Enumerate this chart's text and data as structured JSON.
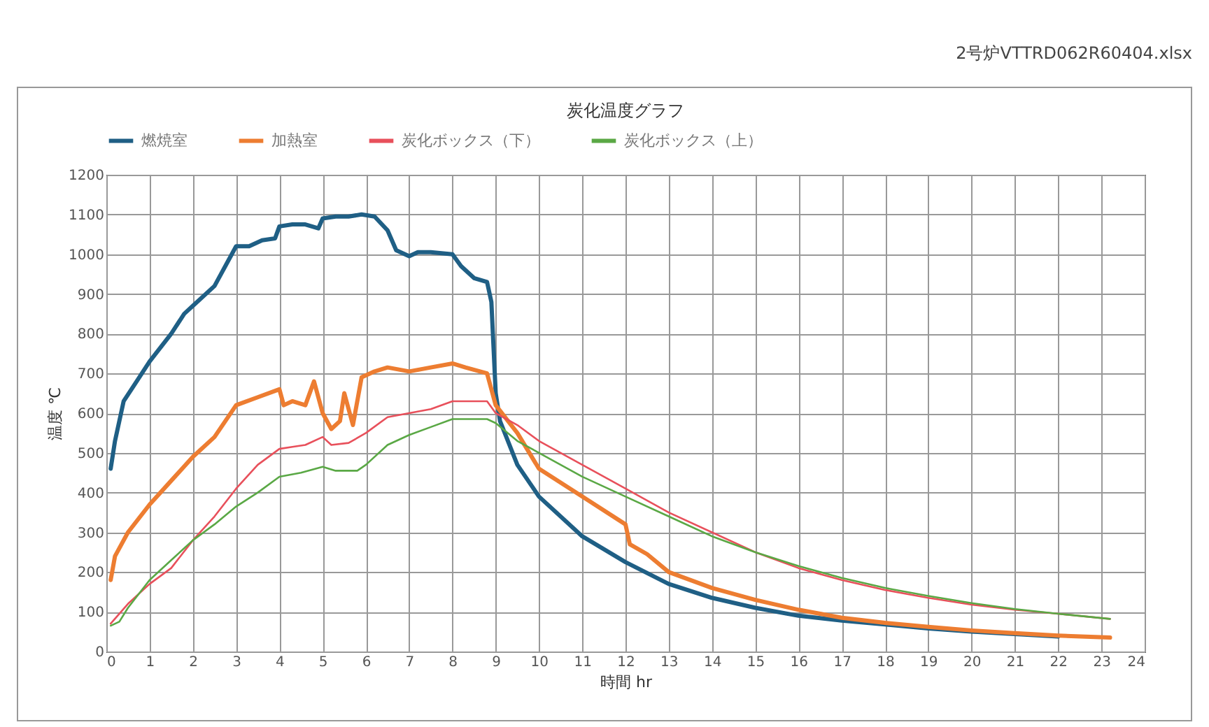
{
  "chart_data": {
    "type": "line",
    "title": "炭化温度グラフ",
    "xlabel": "時間 hr",
    "ylabel": "温度 ℃",
    "annotations": [
      "2号炉VTTRD062R60404.xlsx"
    ],
    "xlim": [
      0,
      24
    ],
    "xticks": [
      0,
      1,
      2,
      3,
      4,
      5,
      6,
      7,
      8,
      9,
      10,
      11,
      12,
      13,
      14,
      15,
      16,
      17,
      18,
      19,
      20,
      21,
      22,
      23,
      24
    ],
    "ylim": [
      0,
      1200
    ],
    "yticks": [
      0,
      100,
      200,
      300,
      400,
      500,
      600,
      700,
      800,
      900,
      1000,
      1100,
      1200
    ],
    "grid": true,
    "legend": "top",
    "series": [
      {
        "name": "燃焼室",
        "color": "#1f5f85",
        "x": [
          0.1,
          0.2,
          0.4,
          0.7,
          1,
          1.5,
          1.8,
          2,
          2.5,
          2.8,
          3,
          3.3,
          3.6,
          3.9,
          4,
          4.3,
          4.6,
          4.9,
          5,
          5.3,
          5.6,
          5.9,
          6.2,
          6.5,
          6.7,
          7,
          7.2,
          7.5,
          8,
          8.2,
          8.5,
          8.8,
          8.9,
          9,
          9.1,
          9.5,
          10,
          11,
          12,
          13,
          14,
          15,
          16,
          17,
          18,
          19,
          20,
          21,
          22
        ],
        "values": [
          460,
          530,
          630,
          680,
          730,
          800,
          850,
          870,
          920,
          980,
          1020,
          1020,
          1035,
          1040,
          1070,
          1075,
          1075,
          1065,
          1090,
          1095,
          1095,
          1100,
          1095,
          1060,
          1010,
          995,
          1005,
          1005,
          1000,
          970,
          940,
          930,
          880,
          650,
          580,
          470,
          390,
          290,
          225,
          170,
          135,
          110,
          90,
          78,
          68,
          58,
          50,
          44,
          38
        ]
      },
      {
        "name": "加熱室",
        "color": "#ed7d31",
        "x": [
          0.1,
          0.2,
          0.5,
          1,
          1.5,
          2,
          2.5,
          3,
          3.5,
          4,
          4.1,
          4.3,
          4.6,
          4.8,
          5,
          5.2,
          5.4,
          5.5,
          5.7,
          5.9,
          6.2,
          6.5,
          7,
          7.5,
          8,
          8.3,
          8.8,
          9,
          9.5,
          10,
          11,
          12,
          12.1,
          12.5,
          13,
          14,
          15,
          16,
          17,
          18,
          19,
          20,
          21,
          22,
          23.2
        ],
        "values": [
          180,
          240,
          300,
          370,
          430,
          490,
          540,
          620,
          640,
          660,
          620,
          630,
          620,
          680,
          600,
          560,
          580,
          650,
          570,
          690,
          705,
          715,
          705,
          715,
          725,
          715,
          700,
          620,
          550,
          460,
          390,
          320,
          270,
          245,
          200,
          160,
          130,
          105,
          85,
          72,
          62,
          53,
          46,
          40,
          35
        ]
      },
      {
        "name": "炭化ボックス（下）",
        "color": "#e8505b",
        "x": [
          0.1,
          0.5,
          1,
          1.5,
          2,
          2.5,
          3,
          3.5,
          4,
          4.3,
          4.6,
          5,
          5.2,
          5.6,
          6,
          6.5,
          7,
          7.5,
          8,
          8.8,
          9,
          9.5,
          10,
          11,
          12,
          13,
          14,
          15,
          16,
          17,
          18,
          19,
          20,
          21,
          22,
          23.2
        ],
        "values": [
          70,
          120,
          170,
          210,
          280,
          340,
          410,
          470,
          510,
          515,
          520,
          540,
          520,
          525,
          550,
          590,
          600,
          610,
          630,
          630,
          600,
          570,
          530,
          470,
          410,
          350,
          300,
          250,
          210,
          180,
          155,
          135,
          118,
          105,
          95,
          82
        ]
      },
      {
        "name": "炭化ボックス（上）",
        "color": "#5aa845",
        "x": [
          0.1,
          0.3,
          0.5,
          1,
          1.5,
          2,
          2.5,
          3,
          3.5,
          4,
          4.5,
          5,
          5.3,
          5.8,
          6,
          6.5,
          7,
          7.5,
          8,
          8.8,
          9,
          9.5,
          10,
          11,
          12,
          13,
          14,
          15,
          16,
          17,
          18,
          19,
          20,
          21,
          22,
          23.2
        ],
        "values": [
          65,
          75,
          110,
          180,
          230,
          280,
          320,
          365,
          400,
          440,
          450,
          465,
          455,
          455,
          470,
          520,
          545,
          565,
          585,
          585,
          575,
          530,
          500,
          440,
          390,
          340,
          290,
          250,
          215,
          185,
          160,
          140,
          122,
          107,
          95,
          82
        ]
      }
    ]
  }
}
